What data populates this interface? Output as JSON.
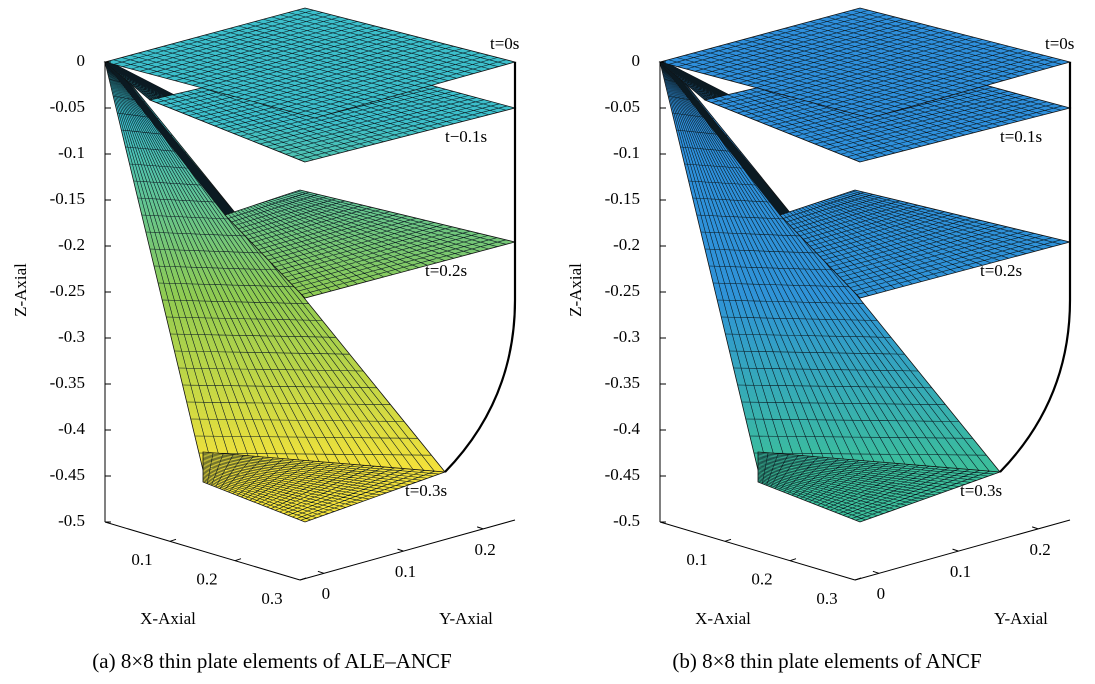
{
  "chart_data": [
    {
      "type": "surface3d",
      "title": "(a) 8×8 thin plate elements of ALE–ANCF",
      "xlabel": "X-Axial",
      "ylabel": "Y-Axial",
      "zlabel": "Z-Axial",
      "xlim": [
        0,
        0.3
      ],
      "xticks": [
        0.1,
        0.2,
        0.3
      ],
      "ylim": [
        -0.03,
        0.24
      ],
      "yticks": [
        0,
        0.1,
        0.2
      ],
      "zlim": [
        -0.5,
        0
      ],
      "zticks": [
        0,
        -0.05,
        -0.1,
        -0.15,
        -0.2,
        -0.25,
        -0.3,
        -0.35,
        -0.4,
        -0.45,
        -0.5
      ],
      "annotations": [
        "t=0s",
        "t−0.1s",
        "t=0.2s",
        "t=0.3s"
      ],
      "colors": [
        "#3cbfcb",
        "#8fcb52",
        "#f5e23a"
      ]
    },
    {
      "type": "surface3d",
      "title": "(b) 8×8 thin plate elements of ANCF",
      "xlabel": "X-Axial",
      "ylabel": "Y-Axial",
      "zlabel": "Z-Axial",
      "xlim": [
        0,
        0.3
      ],
      "xticks": [
        0.1,
        0.2,
        0.3
      ],
      "ylim": [
        -0.03,
        0.24
      ],
      "yticks": [
        0,
        0.1,
        0.2
      ],
      "zlim": [
        -0.5,
        0
      ],
      "zticks": [
        0,
        -0.05,
        -0.1,
        -0.15,
        -0.2,
        -0.25,
        -0.3,
        -0.35,
        -0.4,
        -0.45,
        -0.5
      ],
      "annotations": [
        "t=0s",
        "t=0.1s",
        "t=0.2s",
        "t=0.3s"
      ],
      "colors": [
        "#2e8fdc",
        "#2f93d8",
        "#3cbf9a"
      ]
    }
  ]
}
